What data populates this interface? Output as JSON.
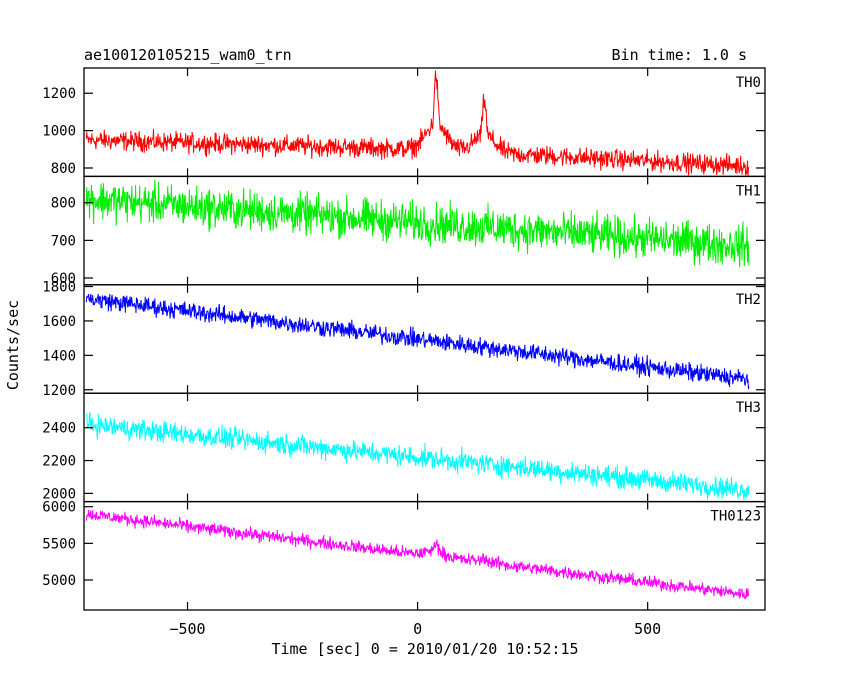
{
  "header": {
    "title": "ae100120105215_wam0_trn",
    "bin_time": "Bin time: 1.0 s"
  },
  "chart_data": {
    "type": "line",
    "title": "ae100120105215_wam0_trn",
    "xlabel": "Time [sec] 0 = 2010/01/20 10:52:15",
    "ylabel": "Counts/sec",
    "xlim": [
      -725,
      755
    ],
    "x_ticks": [
      -500,
      0,
      500
    ],
    "x_tick_labels": [
      "−500",
      "0",
      "500"
    ],
    "x_data_range": [
      -720,
      720
    ],
    "grid": false,
    "panels": [
      {
        "name": "TH0",
        "color": "#ff0000",
        "ylim": [
          755,
          1335
        ],
        "y_ticks": [
          800,
          1000,
          1200
        ],
        "trend": [
          [
            -720,
            950
          ],
          [
            0,
            900
          ],
          [
            720,
            810
          ]
        ],
        "noise_amplitude": 45,
        "peaks": [
          {
            "x": 40,
            "value": 1290
          },
          {
            "x": 145,
            "value": 1160
          }
        ]
      },
      {
        "name": "TH1",
        "color": "#00ee00",
        "ylim": [
          582,
          870
        ],
        "y_ticks": [
          600,
          700,
          800
        ],
        "trend": [
          [
            -720,
            810
          ],
          [
            720,
            685
          ]
        ],
        "noise_amplitude": 45
      },
      {
        "name": "TH2",
        "color": "#0000ff",
        "ylim": [
          1180,
          1810
        ],
        "y_ticks": [
          1200,
          1400,
          1600,
          1800
        ],
        "trend": [
          [
            -720,
            1730
          ],
          [
            720,
            1260
          ]
        ],
        "noise_amplitude": 45
      },
      {
        "name": "TH3",
        "color": "#00ffff",
        "ylim": [
          1950,
          2610
        ],
        "y_ticks": [
          2000,
          2200,
          2400
        ],
        "trend": [
          [
            -720,
            2420
          ],
          [
            720,
            2020
          ]
        ],
        "noise_amplitude": 55
      },
      {
        "name": "TH0123",
        "color": "#ff00ff",
        "ylim": [
          4590,
          6070
        ],
        "y_ticks": [
          5000,
          5500,
          6000
        ],
        "trend": [
          [
            -720,
            5900
          ],
          [
            720,
            4800
          ]
        ],
        "noise_amplitude": 75,
        "peaks": [
          {
            "x": 40,
            "value": 5530
          },
          {
            "x": 145,
            "value": 5300
          }
        ]
      }
    ]
  }
}
